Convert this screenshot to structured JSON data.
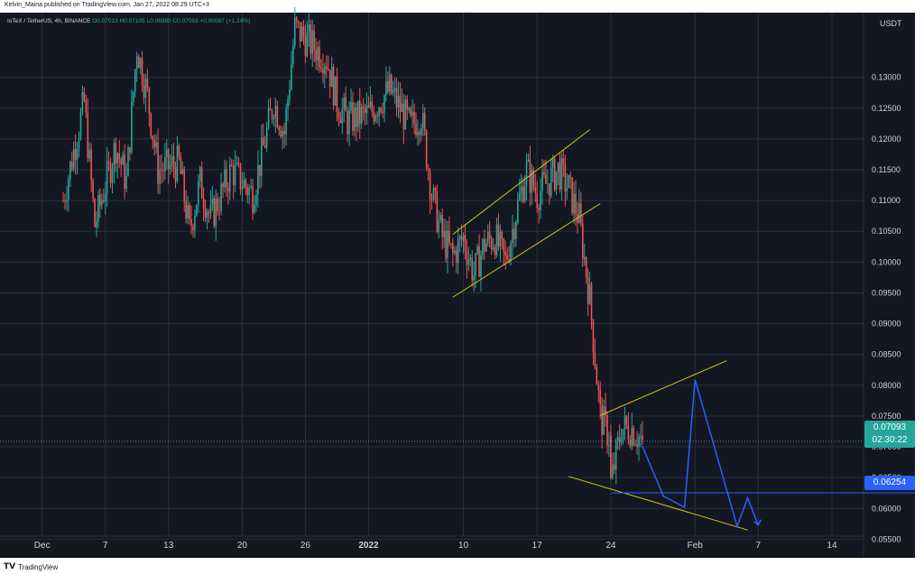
{
  "header": {
    "publisher": "Kelvin_Maina published on TradingView.com, Jan 27, 2022 08:29 UTC+3",
    "symbol": "IoTeX / TetherUS, 4h, BINANCE",
    "ohlc_open": "O0.07013",
    "ohlc_rest": "H0.07105 L0.06980 C0.07093 +0.00087 (+1.24%)"
  },
  "footer": {
    "logo_icon": "tradingview-logo-icon",
    "brand": "TradingView"
  },
  "tags": {
    "currency": "USDT",
    "current_price": "0.07093",
    "countdown": "02:30:22",
    "level_price": "0.06254"
  },
  "colors": {
    "background": "#131722",
    "grid": "#2a2e39",
    "up": "#26a69a",
    "down": "#ef5350",
    "trendline": "#d4c21a",
    "projection": "#2962ff",
    "axis_text": "#d1d4dc"
  },
  "chart_data": {
    "type": "candlestick",
    "title": "IoTeX / TetherUS, 4h, BINANCE",
    "xlabel": "",
    "ylabel": "",
    "y_scale": "linear",
    "ylim": [
      0.0555,
      0.1405
    ],
    "xlim": [
      "2021-11-27",
      "2022-02-17"
    ],
    "y_ticks": [
      "0.05500",
      "0.06000",
      "0.06500",
      "0.07000",
      "0.07500",
      "0.08000",
      "0.08500",
      "0.09000",
      "0.09500",
      "0.10000",
      "0.10500",
      "0.11000",
      "0.11500",
      "0.12000",
      "0.12500",
      "0.13000"
    ],
    "x_ticks": [
      {
        "label": "Dec",
        "date": "2021-12-01",
        "bold": false
      },
      {
        "label": "7",
        "date": "2021-12-07",
        "bold": false
      },
      {
        "label": "13",
        "date": "2021-12-13",
        "bold": false
      },
      {
        "label": "20",
        "date": "2021-12-20",
        "bold": false
      },
      {
        "label": "26",
        "date": "2021-12-26",
        "bold": false
      },
      {
        "label": "2022",
        "date": "2022-01-01",
        "bold": true
      },
      {
        "label": "10",
        "date": "2022-01-10",
        "bold": false
      },
      {
        "label": "17",
        "date": "2022-01-17",
        "bold": false
      },
      {
        "label": "24",
        "date": "2022-01-24",
        "bold": false
      },
      {
        "label": "Feb",
        "date": "2022-02-01",
        "bold": false
      },
      {
        "label": "7",
        "date": "2022-02-07",
        "bold": false
      },
      {
        "label": "14",
        "date": "2022-02-14",
        "bold": false
      }
    ],
    "grid": true,
    "current_price": 0.07093,
    "horizontal_level": 0.06254,
    "price_path": [
      [
        "2021-12-03",
        0.11
      ],
      [
        "2021-12-05",
        0.126
      ],
      [
        "2021-12-06",
        0.106
      ],
      [
        "2021-12-08",
        0.119
      ],
      [
        "2021-12-09",
        0.113
      ],
      [
        "2021-12-10",
        0.135
      ],
      [
        "2021-12-11",
        0.127
      ],
      [
        "2021-12-12",
        0.115
      ],
      [
        "2021-12-14",
        0.116
      ],
      [
        "2021-12-15",
        0.105
      ],
      [
        "2021-12-16",
        0.113
      ],
      [
        "2021-12-17",
        0.107
      ],
      [
        "2021-12-19",
        0.115
      ],
      [
        "2021-12-21",
        0.111
      ],
      [
        "2021-12-23",
        0.126
      ],
      [
        "2021-12-24",
        0.121
      ],
      [
        "2021-12-25",
        0.138
      ],
      [
        "2021-12-28",
        0.133
      ],
      [
        "2021-12-29",
        0.126
      ],
      [
        "2021-12-30",
        0.123
      ],
      [
        "2022-01-01",
        0.124
      ],
      [
        "2022-01-02",
        0.126
      ],
      [
        "2022-01-03",
        0.128
      ],
      [
        "2022-01-04",
        0.125
      ],
      [
        "2022-01-05",
        0.122
      ],
      [
        "2022-01-06",
        0.124
      ],
      [
        "2022-01-07",
        0.111
      ],
      [
        "2022-01-08",
        0.104
      ],
      [
        "2022-01-09",
        0.101
      ],
      [
        "2022-01-10",
        0.104
      ],
      [
        "2022-01-11",
        0.098
      ],
      [
        "2022-01-12",
        0.103
      ],
      [
        "2022-01-13",
        0.104
      ],
      [
        "2022-01-14",
        0.1
      ],
      [
        "2022-01-15",
        0.108
      ],
      [
        "2022-01-16",
        0.115
      ],
      [
        "2022-01-17",
        0.111
      ],
      [
        "2022-01-18",
        0.113
      ],
      [
        "2022-01-19",
        0.115
      ],
      [
        "2022-01-20",
        0.112
      ],
      [
        "2022-01-21",
        0.107
      ],
      [
        "2022-01-22",
        0.094
      ],
      [
        "2022-01-23",
        0.075
      ],
      [
        "2022-01-24",
        0.071
      ],
      [
        "2022-01-24",
        0.064
      ],
      [
        "2022-01-25",
        0.073
      ],
      [
        "2022-01-26",
        0.073
      ],
      [
        "2022-01-27",
        0.0709
      ]
    ],
    "trendlines": [
      {
        "name": "upper-channel-top",
        "color": "#d4c21a",
        "points": [
          [
            "2022-01-09",
            0.1045
          ],
          [
            "2022-01-22",
            0.1215
          ]
        ]
      },
      {
        "name": "upper-channel-bottom",
        "color": "#d4c21a",
        "points": [
          [
            "2022-01-09",
            0.0943
          ],
          [
            "2022-01-23",
            0.1095
          ]
        ]
      },
      {
        "name": "wedge-upper",
        "color": "#d4c21a",
        "points": [
          [
            "2022-01-23",
            0.0751
          ],
          [
            "2022-02-04",
            0.084
          ]
        ]
      },
      {
        "name": "wedge-lower",
        "color": "#d4c21a",
        "points": [
          [
            "2022-01-20",
            0.0652
          ],
          [
            "2022-02-06",
            0.0565
          ]
        ]
      }
    ],
    "projection": [
      [
        "2022-01-27",
        0.0701
      ],
      [
        "2022-01-29",
        0.062
      ],
      [
        "2022-01-31",
        0.0602
      ],
      [
        "2022-02-01",
        0.0809
      ],
      [
        "2022-02-05",
        0.0571
      ],
      [
        "2022-02-06",
        0.0617
      ],
      [
        "2022-02-07",
        0.0573
      ]
    ]
  }
}
